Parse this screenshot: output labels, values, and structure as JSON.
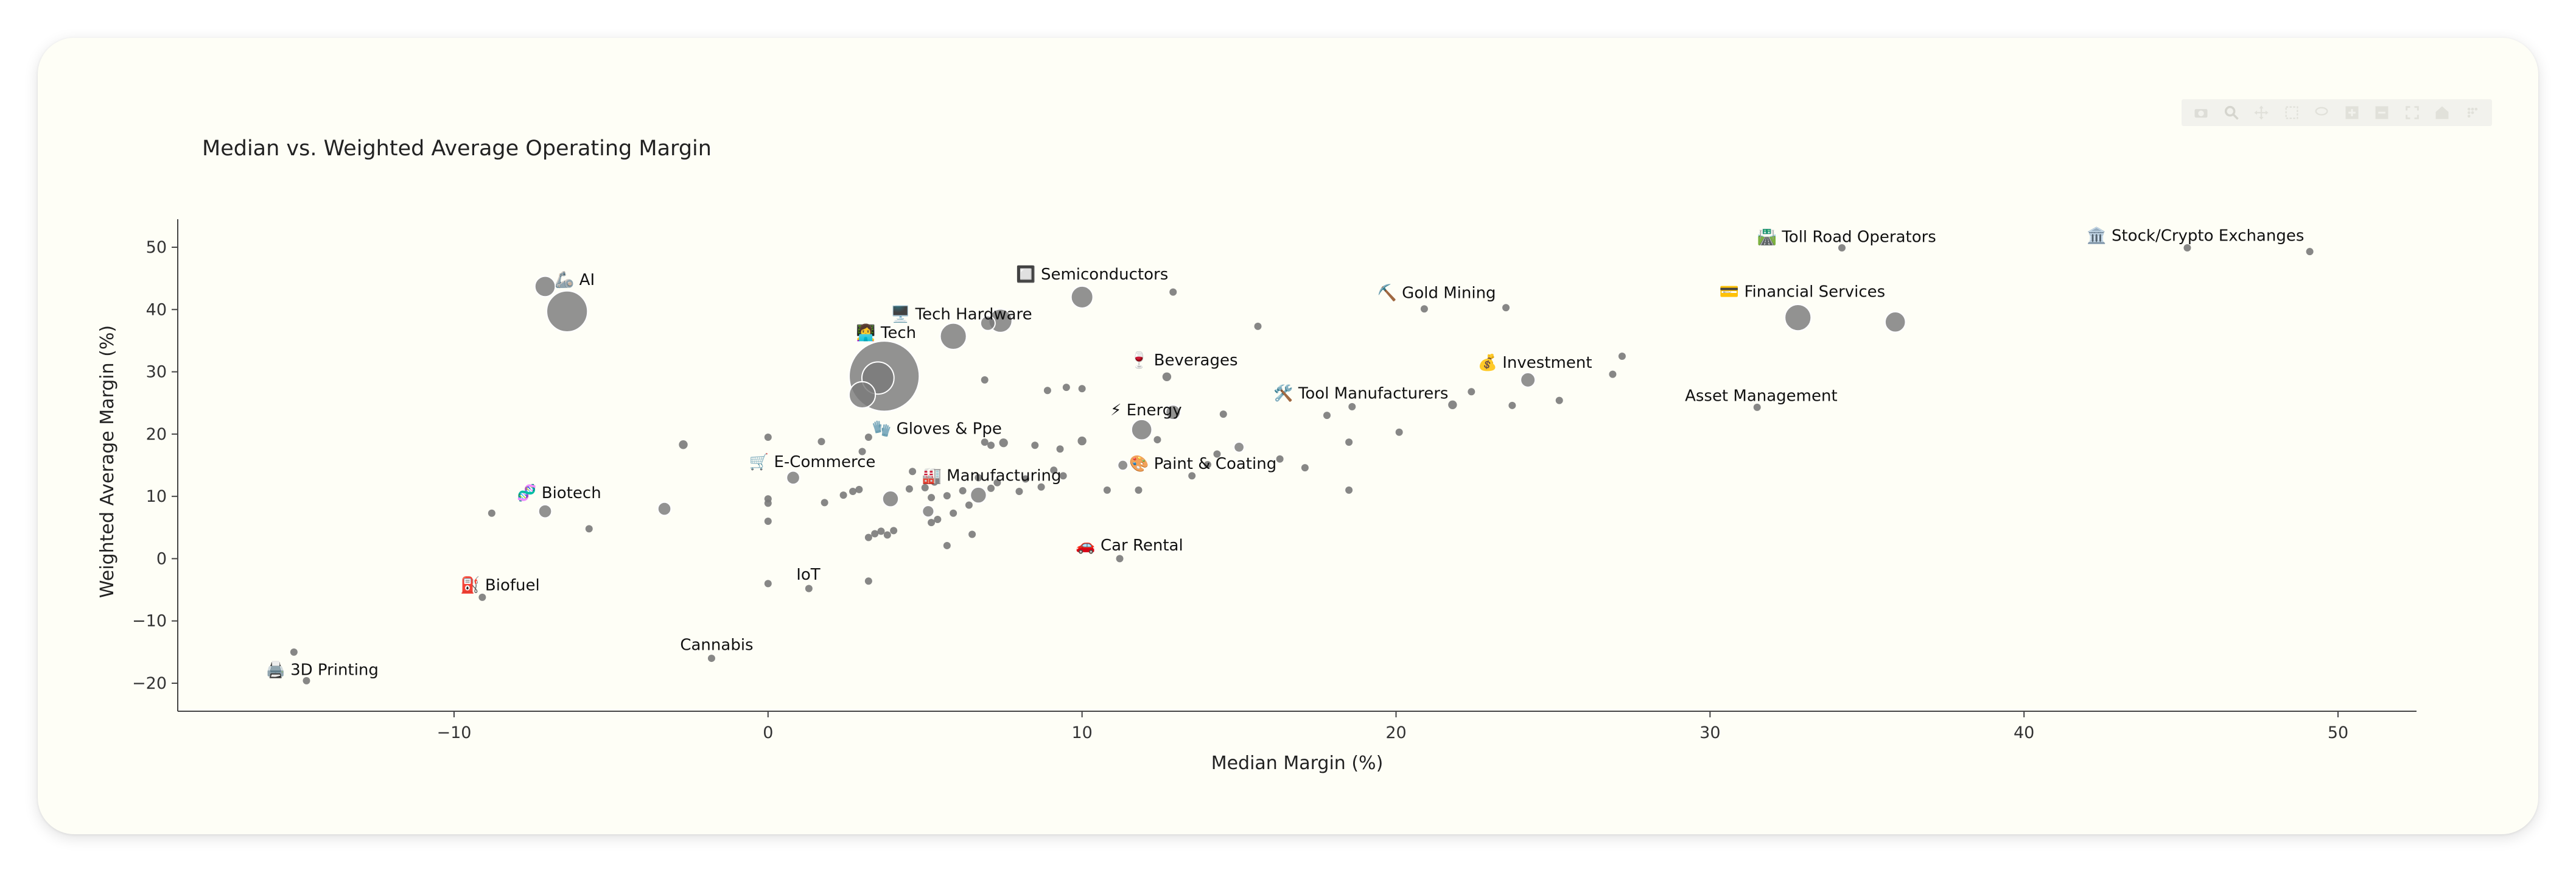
{
  "chart_data": {
    "type": "scatter",
    "title": "Median vs. Weighted Average Operating Margin",
    "xlabel": "Median Margin (%)",
    "ylabel": "Weighted Average Margin (%)",
    "xlim": [
      -18.8,
      52.5
    ],
    "ylim": [
      -24.5,
      54.5
    ],
    "x_ticks": [
      -10,
      0,
      10,
      20,
      30,
      40,
      50
    ],
    "y_ticks": [
      -20,
      -10,
      0,
      10,
      20,
      30,
      40,
      50
    ],
    "grid": false,
    "legend": "none",
    "marker_color": "#7a7a7a",
    "points": [
      {
        "x": 3.7,
        "y": 29.3,
        "size": 48
      },
      {
        "x": 3.5,
        "y": 29.0,
        "size": 22
      },
      {
        "x": 3.0,
        "y": 26.3,
        "size": 18
      },
      {
        "x": -6.4,
        "y": 39.7,
        "size": 28
      },
      {
        "x": -7.1,
        "y": 43.7,
        "size": 14
      },
      {
        "x": 5.9,
        "y": 35.7,
        "size": 18
      },
      {
        "x": 7.4,
        "y": 38.2,
        "size": 16
      },
      {
        "x": 7.0,
        "y": 37.8,
        "size": 10
      },
      {
        "x": 10.0,
        "y": 42.0,
        "size": 15
      },
      {
        "x": 12.9,
        "y": 42.8,
        "size": 5
      },
      {
        "x": 15.6,
        "y": 37.3,
        "size": 5
      },
      {
        "x": 20.9,
        "y": 40.1,
        "size": 5
      },
      {
        "x": 23.5,
        "y": 40.3,
        "size": 5
      },
      {
        "x": 32.8,
        "y": 38.7,
        "size": 18
      },
      {
        "x": 35.9,
        "y": 38.0,
        "size": 14
      },
      {
        "x": 34.2,
        "y": 49.9,
        "size": 5
      },
      {
        "x": 45.2,
        "y": 49.9,
        "size": 5
      },
      {
        "x": 49.1,
        "y": 49.3,
        "size": 5
      },
      {
        "x": 24.2,
        "y": 28.7,
        "size": 10
      },
      {
        "x": 27.2,
        "y": 32.5,
        "size": 5
      },
      {
        "x": 26.9,
        "y": 29.6,
        "size": 5
      },
      {
        "x": 25.2,
        "y": 25.4,
        "size": 5
      },
      {
        "x": 23.7,
        "y": 24.6,
        "size": 5
      },
      {
        "x": 22.4,
        "y": 26.8,
        "size": 5
      },
      {
        "x": 21.8,
        "y": 24.7,
        "size": 6
      },
      {
        "x": 31.5,
        "y": 24.3,
        "size": 5
      },
      {
        "x": 18.6,
        "y": 24.4,
        "size": 5
      },
      {
        "x": 17.8,
        "y": 23.0,
        "size": 5
      },
      {
        "x": 20.1,
        "y": 20.3,
        "size": 5
      },
      {
        "x": 18.5,
        "y": 18.7,
        "size": 5
      },
      {
        "x": 18.5,
        "y": 11.0,
        "size": 5
      },
      {
        "x": 17.1,
        "y": 14.6,
        "size": 5
      },
      {
        "x": 16.3,
        "y": 16.0,
        "size": 5
      },
      {
        "x": 15.0,
        "y": 17.9,
        "size": 7
      },
      {
        "x": 14.3,
        "y": 16.8,
        "size": 5
      },
      {
        "x": 14.0,
        "y": 15.1,
        "size": 5
      },
      {
        "x": 13.5,
        "y": 13.3,
        "size": 5
      },
      {
        "x": 12.9,
        "y": 23.5,
        "size": 10
      },
      {
        "x": 12.7,
        "y": 29.2,
        "size": 6
      },
      {
        "x": 14.5,
        "y": 23.2,
        "size": 5
      },
      {
        "x": 11.9,
        "y": 20.7,
        "size": 14
      },
      {
        "x": 12.4,
        "y": 19.1,
        "size": 5
      },
      {
        "x": 11.3,
        "y": 15.0,
        "size": 7
      },
      {
        "x": 11.8,
        "y": 11.0,
        "size": 5
      },
      {
        "x": 10.8,
        "y": 11.0,
        "size": 5
      },
      {
        "x": 11.2,
        "y": 0.0,
        "size": 5
      },
      {
        "x": 10.0,
        "y": 27.3,
        "size": 5
      },
      {
        "x": 9.5,
        "y": 27.5,
        "size": 5
      },
      {
        "x": 8.9,
        "y": 27.0,
        "size": 5
      },
      {
        "x": 10.0,
        "y": 18.9,
        "size": 6
      },
      {
        "x": 9.4,
        "y": 13.3,
        "size": 5
      },
      {
        "x": 9.1,
        "y": 14.2,
        "size": 5
      },
      {
        "x": 9.3,
        "y": 17.6,
        "size": 5
      },
      {
        "x": 8.5,
        "y": 18.2,
        "size": 5
      },
      {
        "x": 8.2,
        "y": 12.8,
        "size": 5
      },
      {
        "x": 8.7,
        "y": 11.5,
        "size": 5
      },
      {
        "x": 8.0,
        "y": 10.8,
        "size": 5
      },
      {
        "x": 7.5,
        "y": 18.6,
        "size": 6
      },
      {
        "x": 7.1,
        "y": 18.2,
        "size": 5
      },
      {
        "x": 6.9,
        "y": 18.7,
        "size": 5
      },
      {
        "x": 6.9,
        "y": 28.7,
        "size": 5
      },
      {
        "x": 6.7,
        "y": 10.2,
        "size": 11
      },
      {
        "x": 6.7,
        "y": 13.0,
        "size": 5
      },
      {
        "x": 7.1,
        "y": 11.3,
        "size": 5
      },
      {
        "x": 7.3,
        "y": 12.2,
        "size": 5
      },
      {
        "x": 6.4,
        "y": 8.6,
        "size": 5
      },
      {
        "x": 6.2,
        "y": 10.9,
        "size": 5
      },
      {
        "x": 6.5,
        "y": 3.9,
        "size": 5
      },
      {
        "x": 5.9,
        "y": 7.3,
        "size": 5
      },
      {
        "x": 5.7,
        "y": 10.1,
        "size": 5
      },
      {
        "x": 5.3,
        "y": 12.3,
        "size": 5
      },
      {
        "x": 5.2,
        "y": 9.8,
        "size": 5
      },
      {
        "x": 5.1,
        "y": 7.6,
        "size": 8
      },
      {
        "x": 5.4,
        "y": 6.3,
        "size": 5
      },
      {
        "x": 5.2,
        "y": 5.8,
        "size": 5
      },
      {
        "x": 5.7,
        "y": 2.1,
        "size": 5
      },
      {
        "x": 5.0,
        "y": 11.4,
        "size": 5
      },
      {
        "x": 4.6,
        "y": 14.0,
        "size": 5
      },
      {
        "x": 3.9,
        "y": 9.6,
        "size": 11
      },
      {
        "x": 3.6,
        "y": 4.4,
        "size": 5
      },
      {
        "x": 3.8,
        "y": 3.8,
        "size": 5
      },
      {
        "x": 3.4,
        "y": 4.0,
        "size": 5
      },
      {
        "x": 4.0,
        "y": 4.5,
        "size": 5
      },
      {
        "x": 3.2,
        "y": 3.4,
        "size": 5
      },
      {
        "x": 4.5,
        "y": 11.2,
        "size": 5
      },
      {
        "x": 3.2,
        "y": 19.5,
        "size": 5
      },
      {
        "x": 3.0,
        "y": 17.2,
        "size": 5
      },
      {
        "x": 3.2,
        "y": -3.6,
        "size": 5
      },
      {
        "x": 2.9,
        "y": 11.1,
        "size": 5
      },
      {
        "x": 2.7,
        "y": 10.8,
        "size": 5
      },
      {
        "x": 2.4,
        "y": 10.2,
        "size": 5
      },
      {
        "x": 1.8,
        "y": 9.0,
        "size": 5
      },
      {
        "x": 1.7,
        "y": 18.8,
        "size": 5
      },
      {
        "x": 0.8,
        "y": 13.0,
        "size": 9
      },
      {
        "x": 1.3,
        "y": -4.8,
        "size": 5
      },
      {
        "x": 0.0,
        "y": 19.5,
        "size": 5
      },
      {
        "x": 0.0,
        "y": 9.6,
        "size": 5
      },
      {
        "x": 0.0,
        "y": 8.9,
        "size": 5
      },
      {
        "x": 0.0,
        "y": 6.0,
        "size": 5
      },
      {
        "x": 0.0,
        "y": -4.0,
        "size": 5
      },
      {
        "x": -1.8,
        "y": -16.0,
        "size": 5
      },
      {
        "x": -2.7,
        "y": 18.3,
        "size": 6
      },
      {
        "x": -3.3,
        "y": 8.0,
        "size": 9
      },
      {
        "x": -5.7,
        "y": 4.8,
        "size": 5
      },
      {
        "x": -7.1,
        "y": 7.6,
        "size": 9
      },
      {
        "x": -8.8,
        "y": 7.3,
        "size": 5
      },
      {
        "x": -9.1,
        "y": -6.2,
        "size": 5
      },
      {
        "x": -15.1,
        "y": -15.0,
        "size": 5
      },
      {
        "x": -14.7,
        "y": -19.6,
        "size": 5
      }
    ],
    "annotations": [
      {
        "text": "3D Printing",
        "emoji": "🖨️",
        "x": -16.0,
        "y": -17.8
      },
      {
        "text": "Biofuel",
        "emoji": "⛽",
        "x": -9.8,
        "y": -4.2
      },
      {
        "text": "Biotech",
        "emoji": "🧬",
        "x": -8.0,
        "y": 10.6
      },
      {
        "text": "AI",
        "emoji": "🦾",
        "x": -6.8,
        "y": 44.8
      },
      {
        "text": "Cannabis",
        "emoji": "",
        "x": -2.8,
        "y": -13.8
      },
      {
        "text": "E-Commerce",
        "emoji": "🛒",
        "x": -0.6,
        "y": 15.6
      },
      {
        "text": "IoT",
        "emoji": "",
        "x": 0.9,
        "y": -2.5
      },
      {
        "text": "Tech",
        "emoji": "👩‍💻",
        "x": 2.8,
        "y": 36.3
      },
      {
        "text": "Tech Hardware",
        "emoji": "🖥️",
        "x": 3.9,
        "y": 39.3
      },
      {
        "text": "Gloves & Ppe",
        "emoji": "🧤",
        "x": 3.3,
        "y": 20.9
      },
      {
        "text": "Manufacturing",
        "emoji": "🏭",
        "x": 4.9,
        "y": 13.4
      },
      {
        "text": "Semiconductors",
        "emoji": "🔲",
        "x": 7.9,
        "y": 45.7
      },
      {
        "text": "Car Rental",
        "emoji": "🚗",
        "x": 9.8,
        "y": 2.2
      },
      {
        "text": "Energy",
        "emoji": "⚡",
        "x": 10.9,
        "y": 23.9
      },
      {
        "text": "Beverages",
        "emoji": "🍷",
        "x": 11.5,
        "y": 31.9
      },
      {
        "text": "Paint & Coating",
        "emoji": "🎨",
        "x": 11.5,
        "y": 15.3
      },
      {
        "text": "Tool Manufacturers",
        "emoji": "🛠️",
        "x": 16.1,
        "y": 26.6
      },
      {
        "text": "Gold Mining",
        "emoji": "⛏️",
        "x": 19.4,
        "y": 42.7
      },
      {
        "text": "Investment",
        "emoji": "💰",
        "x": 22.6,
        "y": 31.5
      },
      {
        "text": "Asset Management",
        "emoji": "",
        "x": 29.2,
        "y": 26.2
      },
      {
        "text": "Financial Services",
        "emoji": "💳",
        "x": 30.3,
        "y": 42.9
      },
      {
        "text": "Toll Road Operators",
        "emoji": "🛣️",
        "x": 31.5,
        "y": 51.7
      },
      {
        "text": "Stock/Crypto Exchanges",
        "emoji": "🏛️",
        "x": 42.0,
        "y": 51.9
      }
    ]
  }
}
